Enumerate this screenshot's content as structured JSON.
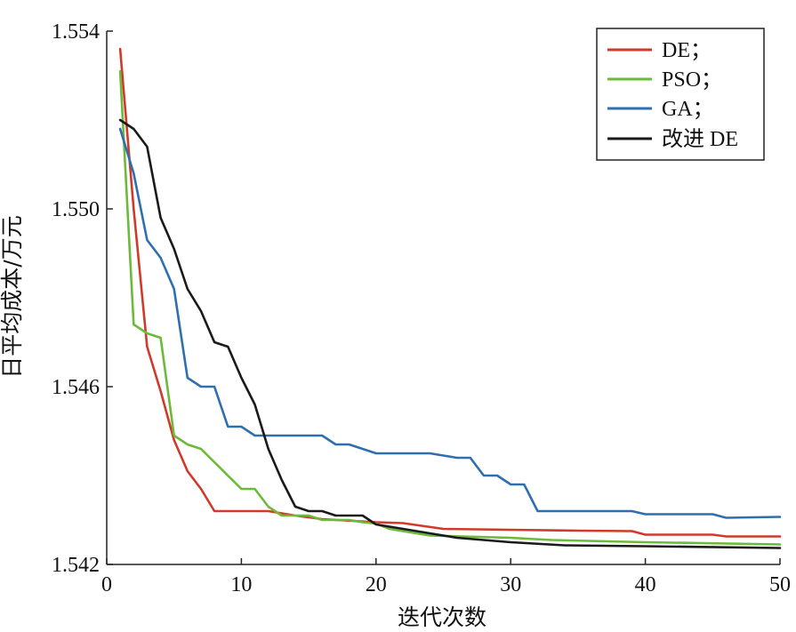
{
  "chart_data": {
    "type": "line",
    "title": "",
    "xlabel": "迭代次数",
    "ylabel": "日平均成本/万元",
    "xlim": [
      0,
      50
    ],
    "ylim": [
      1.542,
      1.554
    ],
    "xticks": [
      0,
      10,
      20,
      30,
      40,
      50
    ],
    "xtick_labels": [
      "0",
      "10",
      "20",
      "30",
      "40",
      "50"
    ],
    "yticks": [
      1.542,
      1.546,
      1.55,
      1.554
    ],
    "ytick_labels": [
      "1.542",
      "1.546",
      "1.550",
      "1.554"
    ],
    "grid": false,
    "legend_position": "top-right",
    "series": [
      {
        "name": "DE",
        "legend_label": "DE；",
        "color": "#d03a2a",
        "points": [
          [
            1,
            1.5536
          ],
          [
            2,
            1.55
          ],
          [
            3,
            1.5469
          ],
          [
            4,
            1.5459
          ],
          [
            5,
            1.5448
          ],
          [
            6,
            1.5441
          ],
          [
            7,
            1.5437
          ],
          [
            8,
            1.5432
          ],
          [
            9,
            1.5432
          ],
          [
            12,
            1.5432
          ],
          [
            14,
            1.5431
          ],
          [
            16,
            1.54302
          ],
          [
            20,
            1.54295
          ],
          [
            22,
            1.54293
          ],
          [
            25,
            1.5428
          ],
          [
            30,
            1.54278
          ],
          [
            35,
            1.54276
          ],
          [
            39,
            1.54275
          ],
          [
            40,
            1.54267
          ],
          [
            45,
            1.54267
          ],
          [
            46,
            1.54263
          ],
          [
            50,
            1.54263
          ]
        ]
      },
      {
        "name": "PSO",
        "legend_label": "PSO；",
        "color": "#6cba3a",
        "points": [
          [
            1,
            1.5531
          ],
          [
            2,
            1.5474
          ],
          [
            3,
            1.5472
          ],
          [
            4,
            1.5471
          ],
          [
            5,
            1.5449
          ],
          [
            6,
            1.5447
          ],
          [
            7,
            1.5446
          ],
          [
            8,
            1.5443
          ],
          [
            10,
            1.5437
          ],
          [
            11,
            1.5437
          ],
          [
            12,
            1.5433
          ],
          [
            13,
            1.5431
          ],
          [
            15,
            1.5431
          ],
          [
            16,
            1.543
          ],
          [
            18,
            1.543
          ],
          [
            19,
            1.54295
          ],
          [
            20,
            1.54292
          ],
          [
            21,
            1.5428
          ],
          [
            23,
            1.5427
          ],
          [
            24,
            1.54265
          ],
          [
            30,
            1.5426
          ],
          [
            33,
            1.54255
          ],
          [
            40,
            1.5425
          ],
          [
            50,
            1.54245
          ]
        ]
      },
      {
        "name": "GA",
        "legend_label": "GA；",
        "color": "#2f6fb0",
        "points": [
          [
            1,
            1.5518
          ],
          [
            2,
            1.5508
          ],
          [
            3,
            1.5493
          ],
          [
            4,
            1.5489
          ],
          [
            5,
            1.5482
          ],
          [
            6,
            1.5462
          ],
          [
            7,
            1.546
          ],
          [
            8,
            1.546
          ],
          [
            9,
            1.5451
          ],
          [
            10,
            1.5451
          ],
          [
            11,
            1.5449
          ],
          [
            16,
            1.5449
          ],
          [
            17,
            1.5447
          ],
          [
            18,
            1.5447
          ],
          [
            19,
            1.5446
          ],
          [
            20,
            1.5445
          ],
          [
            24,
            1.5445
          ],
          [
            25,
            1.54445
          ],
          [
            26,
            1.5444
          ],
          [
            27,
            1.5444
          ],
          [
            28,
            1.544
          ],
          [
            29,
            1.544
          ],
          [
            30,
            1.5438
          ],
          [
            31,
            1.5438
          ],
          [
            32,
            1.5432
          ],
          [
            39,
            1.5432
          ],
          [
            40,
            1.54313
          ],
          [
            45,
            1.54313
          ],
          [
            46,
            1.54305
          ],
          [
            50,
            1.54307
          ]
        ]
      },
      {
        "name": "改进 DE",
        "legend_label": "改进 DE",
        "color": "#1a1a1a",
        "points": [
          [
            1,
            1.552
          ],
          [
            2,
            1.5518
          ],
          [
            3,
            1.5514
          ],
          [
            4,
            1.5498
          ],
          [
            5,
            1.5491
          ],
          [
            6,
            1.5482
          ],
          [
            7,
            1.5477
          ],
          [
            8,
            1.547
          ],
          [
            9,
            1.5469
          ],
          [
            10,
            1.5462
          ],
          [
            11,
            1.5456
          ],
          [
            12,
            1.5446
          ],
          [
            13,
            1.5439
          ],
          [
            14,
            1.5433
          ],
          [
            15,
            1.5432
          ],
          [
            16,
            1.5432
          ],
          [
            17,
            1.5431
          ],
          [
            19,
            1.5431
          ],
          [
            20,
            1.5429
          ],
          [
            22,
            1.5428
          ],
          [
            24,
            1.5427
          ],
          [
            26,
            1.5426
          ],
          [
            28,
            1.54255
          ],
          [
            30,
            1.5425
          ],
          [
            34,
            1.54243
          ],
          [
            40,
            1.54241
          ],
          [
            50,
            1.54237
          ]
        ]
      }
    ]
  }
}
